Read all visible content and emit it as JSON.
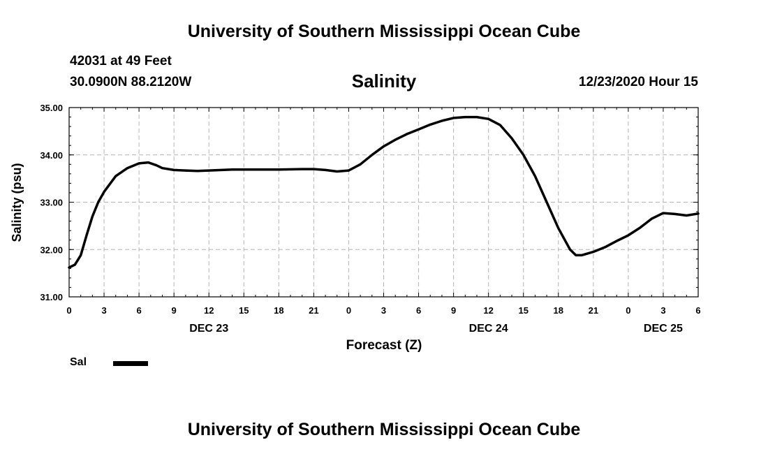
{
  "header": {
    "title": "University of Southern Mississippi Ocean Cube",
    "station": "42031 at 49 Feet",
    "coords": "30.0900N 88.2120W",
    "time": "12/23/2020 Hour 15"
  },
  "footer": {
    "title": "University of Southern Mississippi Ocean Cube"
  },
  "legend": {
    "label": "Sal",
    "color": "#000000"
  },
  "chart_data": {
    "type": "line",
    "title": "Salinity",
    "xlabel": "Forecast (Z)",
    "ylabel": "Salinity (psu)",
    "xlim": [
      0,
      54
    ],
    "ylim": [
      31.0,
      35.0
    ],
    "grid": true,
    "x_ticks": [
      0,
      3,
      6,
      9,
      12,
      15,
      18,
      21,
      24,
      27,
      30,
      33,
      36,
      39,
      42,
      45,
      48,
      51,
      54
    ],
    "x_tick_labels": [
      "0",
      "3",
      "6",
      "9",
      "12",
      "15",
      "18",
      "21",
      "0",
      "3",
      "6",
      "9",
      "12",
      "15",
      "18",
      "21",
      "0",
      "3",
      "6"
    ],
    "y_ticks": [
      31,
      32,
      33,
      34,
      35
    ],
    "y_tick_labels": [
      "31.00",
      "32.00",
      "33.00",
      "34.00",
      "35.00"
    ],
    "day_labels": [
      {
        "x": 12,
        "label": "DEC 23"
      },
      {
        "x": 36,
        "label": "DEC 24"
      },
      {
        "x": 51,
        "label": "DEC 25"
      }
    ],
    "series": [
      {
        "name": "Sal",
        "color": "#000000",
        "x": [
          0,
          0.5,
          1,
          1.5,
          2,
          2.5,
          3,
          4,
          5,
          6,
          6.8,
          7.5,
          8,
          9,
          10,
          11,
          12,
          14,
          16,
          18,
          20,
          21,
          22,
          23,
          24,
          25,
          26,
          27,
          28,
          29,
          30,
          31,
          32,
          33,
          34,
          35,
          36,
          37,
          38,
          39,
          40,
          41,
          42,
          43,
          43.5,
          44,
          45,
          46,
          47,
          48,
          49,
          50,
          51,
          52,
          53,
          54
        ],
        "y": [
          31.62,
          31.68,
          31.88,
          32.3,
          32.7,
          33.0,
          33.22,
          33.55,
          33.72,
          33.82,
          33.84,
          33.78,
          33.72,
          33.68,
          33.67,
          33.66,
          33.67,
          33.69,
          33.69,
          33.69,
          33.7,
          33.7,
          33.68,
          33.65,
          33.67,
          33.8,
          34.0,
          34.18,
          34.32,
          34.44,
          34.54,
          34.64,
          34.72,
          34.78,
          34.8,
          34.8,
          34.76,
          34.63,
          34.35,
          34.0,
          33.55,
          33.0,
          32.45,
          32.0,
          31.88,
          31.88,
          31.95,
          32.05,
          32.18,
          32.3,
          32.46,
          32.65,
          32.77,
          32.75,
          32.72,
          32.76
        ]
      }
    ]
  }
}
